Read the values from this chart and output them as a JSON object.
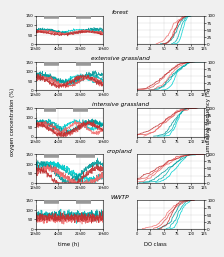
{
  "titles": [
    "forest",
    "extensive grassland",
    "intensive grassland",
    "cropland",
    "WWTP"
  ],
  "bg_color": "#f0f0f0",
  "panel_bg": "#ffffff",
  "ylabel_left": "oxygen concentration (%)",
  "ylabel_right": "cumulative frequency (%)",
  "xlabel_left": "time (h)",
  "xlabel_right": "DO class",
  "colors_cyan": [
    "#00b5b5",
    "#00d0d0",
    "#009999",
    "#00e0e0",
    "#007a7a"
  ],
  "colors_red": [
    "#e05555",
    "#f07070",
    "#c03030",
    "#e88080",
    "#a02020"
  ],
  "gray_bar": "#999999",
  "grid_color": "#cccccc",
  "ylim_left": [
    0,
    150
  ],
  "yticks_left": [
    0,
    50,
    100,
    150
  ],
  "ylim_right": [
    0,
    100
  ],
  "yticks_right": [
    0,
    25,
    50,
    75,
    100
  ],
  "xlim_right": [
    0,
    125
  ],
  "xticks_right": [
    0,
    25,
    50,
    75,
    100,
    125
  ]
}
